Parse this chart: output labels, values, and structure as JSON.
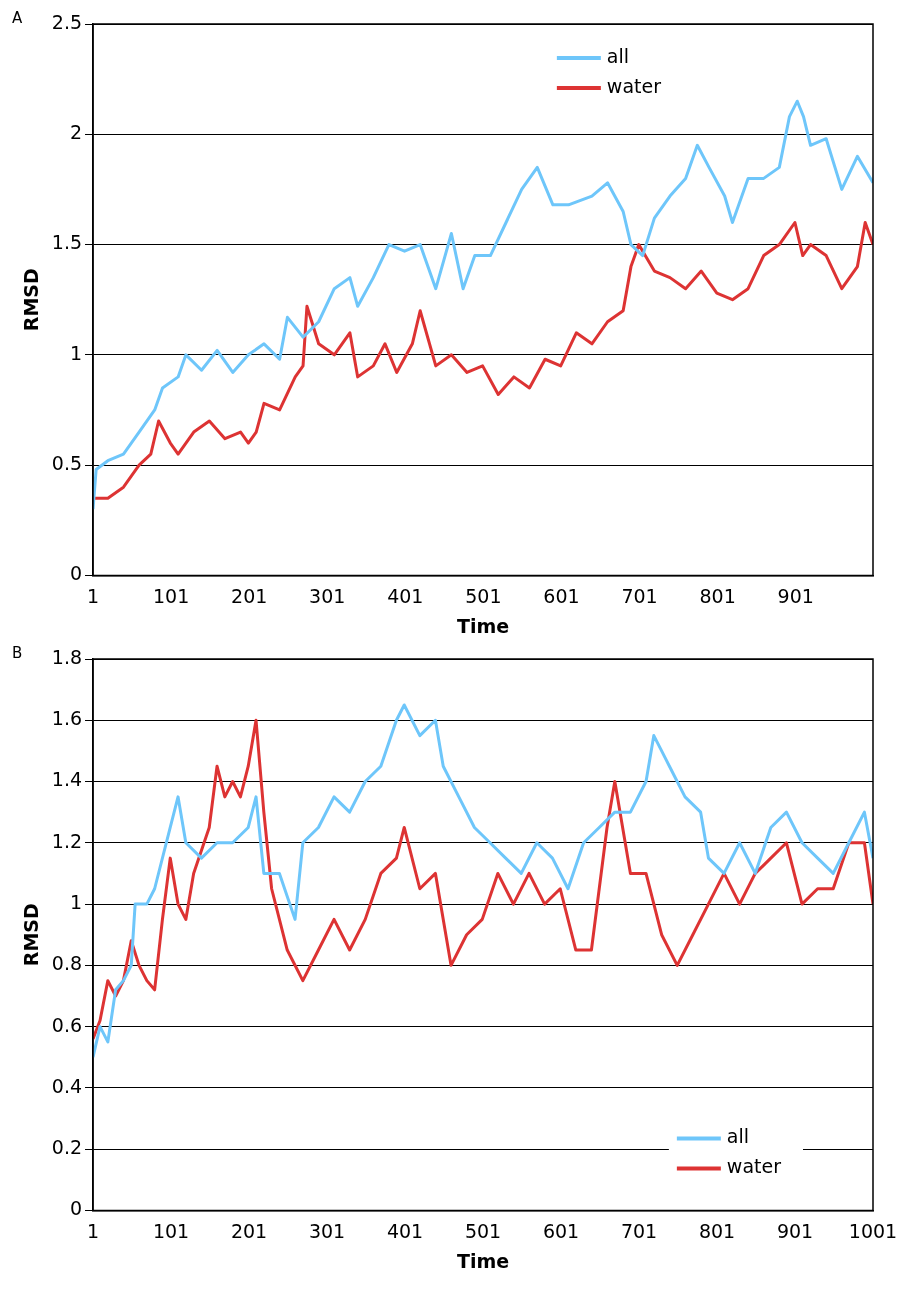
{
  "chart_data": [
    {
      "type": "line",
      "title": "A",
      "xlabel": "Time",
      "ylabel": "RMSD",
      "xlim": [
        1,
        1000
      ],
      "xticks": [
        1,
        101,
        201,
        301,
        401,
        501,
        601,
        701,
        801,
        901
      ],
      "ylim": [
        0,
        2.5
      ],
      "yticks": [
        0,
        0.5,
        1,
        1.5,
        2,
        2.5
      ],
      "grid": "y",
      "legend": "top right",
      "marker": "none",
      "line_style": "solid",
      "series": [
        {
          "name": "all",
          "color": "#6ec6fa",
          "x": [
            1,
            5,
            20,
            40,
            60,
            80,
            90,
            110,
            120,
            140,
            160,
            180,
            200,
            220,
            240,
            250,
            270,
            290,
            310,
            330,
            340,
            360,
            380,
            400,
            420,
            440,
            460,
            475,
            490,
            510,
            530,
            550,
            570,
            590,
            610,
            640,
            660,
            680,
            690,
            705,
            720,
            740,
            760,
            775,
            790,
            810,
            820,
            840,
            860,
            880,
            893,
            903,
            911,
            920,
            940,
            960,
            980,
            1000
          ],
          "values": [
            0.3,
            0.48,
            0.52,
            0.55,
            0.65,
            0.75,
            0.85,
            0.9,
            1.0,
            0.93,
            1.02,
            0.92,
            1.0,
            1.05,
            0.98,
            1.17,
            1.08,
            1.15,
            1.3,
            1.35,
            1.22,
            1.35,
            1.5,
            1.47,
            1.5,
            1.3,
            1.55,
            1.3,
            1.45,
            1.45,
            1.6,
            1.75,
            1.85,
            1.68,
            1.68,
            1.72,
            1.78,
            1.65,
            1.5,
            1.45,
            1.62,
            1.72,
            1.8,
            1.95,
            1.85,
            1.72,
            1.6,
            1.8,
            1.8,
            1.85,
            2.08,
            2.15,
            2.08,
            1.95,
            1.98,
            1.75,
            1.9,
            1.78
          ]
        },
        {
          "name": "water",
          "color": "#dd3333",
          "x": [
            1,
            20,
            40,
            60,
            75,
            85,
            100,
            110,
            130,
            150,
            170,
            190,
            200,
            210,
            220,
            240,
            260,
            270,
            275,
            290,
            310,
            330,
            340,
            360,
            375,
            390,
            410,
            420,
            440,
            460,
            480,
            500,
            520,
            540,
            560,
            580,
            600,
            620,
            640,
            660,
            680,
            690,
            700,
            720,
            740,
            760,
            780,
            800,
            820,
            840,
            860,
            880,
            900,
            910,
            920,
            940,
            960,
            970,
            980,
            990,
            1000
          ],
          "values": [
            0.35,
            0.35,
            0.4,
            0.5,
            0.55,
            0.7,
            0.6,
            0.55,
            0.65,
            0.7,
            0.62,
            0.65,
            0.6,
            0.65,
            0.78,
            0.75,
            0.9,
            0.95,
            1.22,
            1.05,
            1.0,
            1.1,
            0.9,
            0.95,
            1.05,
            0.92,
            1.05,
            1.2,
            0.95,
            1.0,
            0.92,
            0.95,
            0.82,
            0.9,
            0.85,
            0.98,
            0.95,
            1.1,
            1.05,
            1.15,
            1.2,
            1.4,
            1.5,
            1.38,
            1.35,
            1.3,
            1.38,
            1.28,
            1.25,
            1.3,
            1.45,
            1.5,
            1.6,
            1.45,
            1.5,
            1.45,
            1.3,
            1.35,
            1.4,
            1.6,
            1.5
          ]
        }
      ]
    },
    {
      "type": "line",
      "title": "B",
      "xlabel": "Time",
      "ylabel": "RMSD",
      "xlim": [
        1,
        1001
      ],
      "xticks": [
        1,
        101,
        201,
        301,
        401,
        501,
        601,
        701,
        801,
        901,
        1001
      ],
      "ylim": [
        0,
        1.8
      ],
      "yticks": [
        0,
        0.2,
        0.4,
        0.6,
        0.8,
        1,
        1.2,
        1.4,
        1.6,
        1.8
      ],
      "grid": "y",
      "legend": "bottom right",
      "marker": "none",
      "line_style": "solid",
      "series": [
        {
          "name": "all",
          "color": "#6ec6fa",
          "x": [
            1,
            10,
            20,
            30,
            40,
            50,
            55,
            70,
            80,
            100,
            110,
            120,
            140,
            160,
            180,
            200,
            210,
            220,
            240,
            260,
            270,
            290,
            310,
            330,
            350,
            370,
            390,
            400,
            420,
            440,
            450,
            470,
            490,
            510,
            530,
            550,
            570,
            590,
            610,
            630,
            650,
            670,
            690,
            710,
            720,
            730,
            740,
            760,
            780,
            790,
            810,
            830,
            850,
            870,
            890,
            910,
            930,
            950,
            970,
            990,
            1001
          ],
          "values": [
            0.5,
            0.6,
            0.55,
            0.72,
            0.75,
            0.8,
            1.0,
            1.0,
            1.05,
            1.25,
            1.35,
            1.2,
            1.15,
            1.2,
            1.2,
            1.25,
            1.35,
            1.1,
            1.1,
            0.95,
            1.2,
            1.25,
            1.35,
            1.3,
            1.4,
            1.45,
            1.6,
            1.65,
            1.55,
            1.6,
            1.45,
            1.35,
            1.25,
            1.2,
            1.15,
            1.1,
            1.2,
            1.15,
            1.05,
            1.2,
            1.25,
            1.3,
            1.3,
            1.4,
            1.55,
            1.5,
            1.45,
            1.35,
            1.3,
            1.15,
            1.1,
            1.2,
            1.1,
            1.25,
            1.3,
            1.2,
            1.15,
            1.1,
            1.2,
            1.3,
            1.15
          ]
        },
        {
          "name": "water",
          "color": "#dd3333",
          "x": [
            1,
            10,
            20,
            30,
            40,
            50,
            60,
            70,
            80,
            90,
            100,
            110,
            120,
            130,
            150,
            160,
            170,
            180,
            190,
            200,
            210,
            220,
            230,
            250,
            270,
            290,
            310,
            330,
            350,
            370,
            390,
            400,
            420,
            440,
            460,
            480,
            500,
            520,
            540,
            560,
            580,
            600,
            620,
            640,
            660,
            670,
            690,
            710,
            730,
            750,
            770,
            790,
            810,
            830,
            850,
            870,
            890,
            910,
            930,
            950,
            970,
            990,
            1001
          ],
          "values": [
            0.56,
            0.62,
            0.75,
            0.7,
            0.75,
            0.88,
            0.8,
            0.75,
            0.72,
            0.95,
            1.15,
            1.0,
            0.95,
            1.1,
            1.25,
            1.45,
            1.35,
            1.4,
            1.35,
            1.45,
            1.6,
            1.3,
            1.05,
            0.85,
            0.75,
            0.85,
            0.95,
            0.85,
            0.95,
            1.1,
            1.15,
            1.25,
            1.05,
            1.1,
            0.8,
            0.9,
            0.95,
            1.1,
            1.0,
            1.1,
            1.0,
            1.05,
            0.85,
            0.85,
            1.25,
            1.4,
            1.1,
            1.1,
            0.9,
            0.8,
            0.9,
            1.0,
            1.1,
            1.0,
            1.1,
            1.15,
            1.2,
            1.0,
            1.05,
            1.05,
            1.2,
            1.2,
            1.0
          ]
        }
      ]
    }
  ]
}
